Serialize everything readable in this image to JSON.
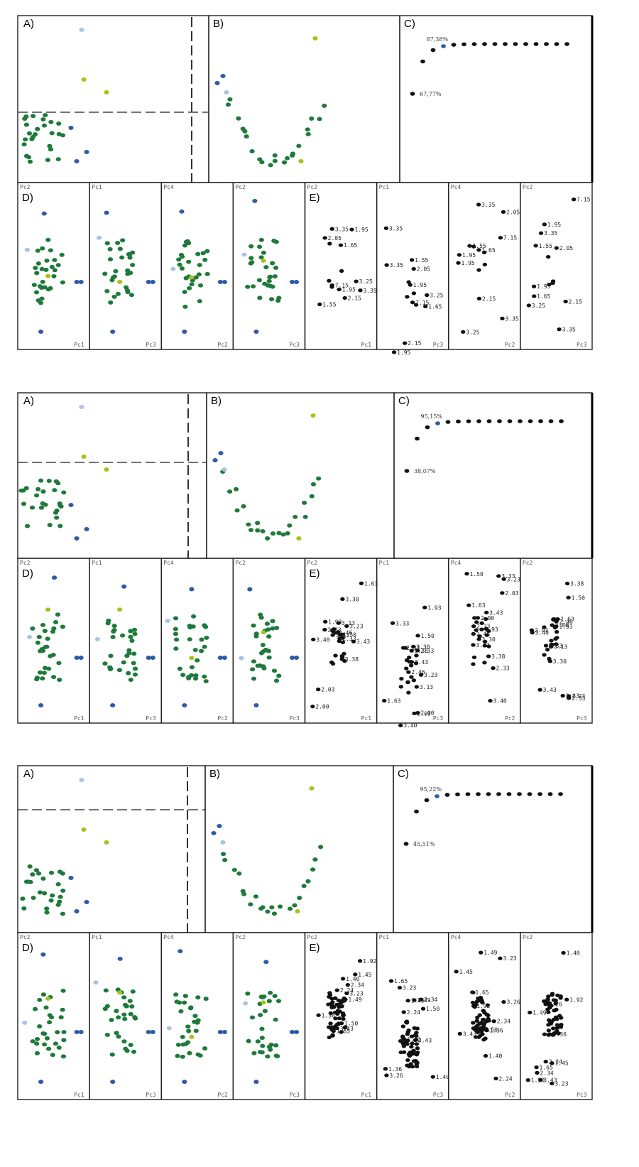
{
  "colors": {
    "dark_green": "#1e7a3a",
    "yellow_green": "#a8c21c",
    "light_blue": "#a9c3e8",
    "blue": "#2f5aa8",
    "black": "#111111",
    "frame": "#222222"
  },
  "panel_labels": {
    "a": "A)",
    "b": "B)",
    "c": "C)",
    "d": "D)",
    "e": "E)"
  },
  "chart_data": [
    {
      "type": "scatter",
      "figure": 1,
      "scree_percent_labels": [
        "67,77%",
        "87,38%"
      ],
      "d_axis_labels": [
        [
          "Pc2",
          "Pc1"
        ],
        [
          "Pc1",
          "Pc3"
        ],
        [
          "Pc4",
          "Pc2"
        ],
        [
          "Pc2",
          "Pc3"
        ]
      ],
      "e_axis_labels": [
        [
          "Pc2",
          "Pc1"
        ],
        [
          "Pc1",
          "Pc3"
        ],
        [
          "Pc4",
          "Pc2"
        ],
        [
          "Pc2",
          "Pc3"
        ]
      ],
      "e_point_labels": [
        "2.05",
        "3.35",
        "2.15",
        "7.15",
        "1.95",
        "3.25",
        "1.65",
        "1.55",
        "1.95",
        "3.35"
      ]
    },
    {
      "type": "scatter",
      "figure": 2,
      "scree_percent_labels": [
        "38,07%",
        "95,15%"
      ],
      "d_axis_labels": [
        [
          "Pc2",
          "Pc1"
        ],
        [
          "Pc1",
          "Pc3"
        ],
        [
          "Pc4",
          "Pc2"
        ],
        [
          "Pc2",
          "Pc3"
        ]
      ],
      "e_axis_labels": [
        [
          "Pc2",
          "Pc1"
        ],
        [
          "Pc1",
          "Pc3"
        ],
        [
          "Pc4",
          "Pc2"
        ],
        [
          "Pc2",
          "Pc3"
        ]
      ],
      "e_point_labels": [
        "3.30",
        "1.93",
        "1.63",
        "1.50",
        "3.23",
        "2.33",
        "2.03",
        "2.00",
        "3.40",
        "3.43",
        "3.33",
        "3.38",
        "2.46",
        "3.13",
        "2.33"
      ]
    },
    {
      "type": "scatter",
      "figure": 3,
      "scree_percent_labels": [
        "45,51%",
        "95,22%"
      ],
      "d_axis_labels": [
        [
          "Pc2",
          "Pc1"
        ],
        [
          "Pc1",
          "Pc3"
        ],
        [
          "Pc4",
          "Pc2"
        ],
        [
          "Pc2",
          "Pc3"
        ]
      ],
      "e_axis_labels": [
        [
          "Pc2",
          "Pc1"
        ],
        [
          "Pc1",
          "Pc3"
        ],
        [
          "Pc4",
          "Pc2"
        ],
        [
          "Pc2",
          "Pc3"
        ]
      ],
      "e_point_labels": [
        "1.92",
        "1.36",
        "3.26",
        "2.34",
        "1.50",
        "1.40",
        "1.49",
        "1.45",
        "2.24",
        "3.23",
        "1.65",
        "3.43"
      ]
    }
  ]
}
